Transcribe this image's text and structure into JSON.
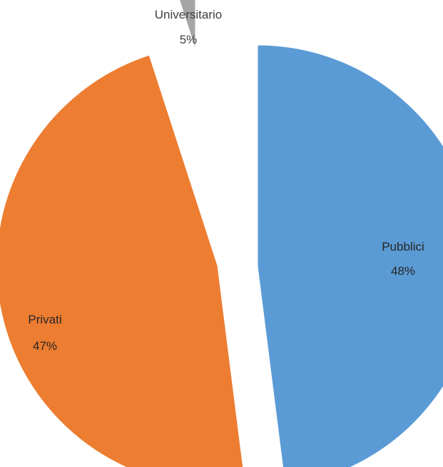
{
  "chart_data": {
    "type": "pie",
    "title": "",
    "categories": [
      "Pubblici",
      "Privati",
      "Universitario"
    ],
    "values": [
      48,
      47,
      5
    ],
    "value_labels": [
      "48%",
      "47%",
      "5%"
    ],
    "exploded": true,
    "legend": "none",
    "colors": [
      "#5B9BD5",
      "#ED7D31",
      "#A5A5A5"
    ]
  }
}
